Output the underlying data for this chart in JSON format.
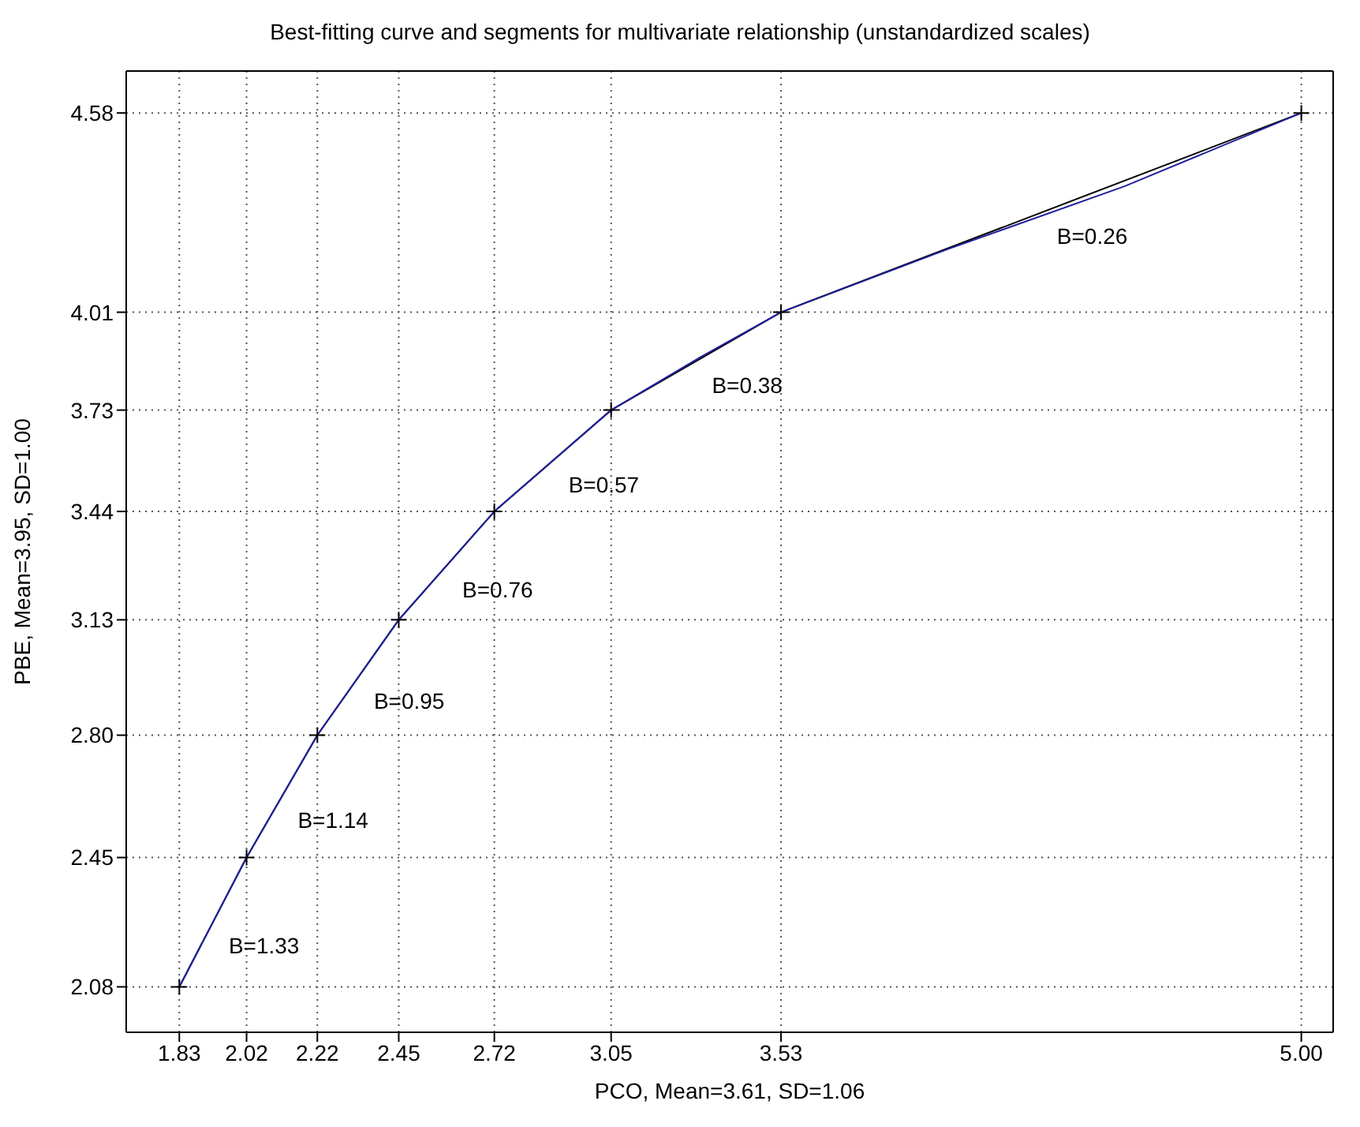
{
  "chart_data": {
    "type": "line",
    "title": "Best-fitting curve and segments for multivariate relationship (unstandardized scales)",
    "xlabel": "PCO, Mean=3.61, SD=1.06",
    "ylabel": "PBE, Mean=3.95, SD=1.00",
    "series": [
      {
        "color": "#000000",
        "marker": "cross",
        "x": [
          1.83,
          2.02,
          2.22,
          2.45,
          2.72,
          3.05,
          3.53,
          5.0
        ],
        "values": [
          2.08,
          2.45,
          2.8,
          3.13,
          3.44,
          3.73,
          4.01,
          4.58
        ]
      },
      {
        "color": "#2020a0",
        "marker": "none",
        "x": [
          1.83,
          2.02,
          2.22,
          2.45,
          2.72,
          3.05,
          3.3,
          3.53,
          4.0,
          4.5,
          5.0
        ],
        "values": [
          2.08,
          2.45,
          2.8,
          3.13,
          3.44,
          3.73,
          3.88,
          4.01,
          4.19,
          4.37,
          4.58
        ]
      }
    ],
    "xlim": [
      1.68,
      5.09
    ],
    "ylim": [
      1.95,
      4.7
    ],
    "xticks": [
      1.83,
      2.02,
      2.22,
      2.45,
      2.72,
      3.05,
      3.53,
      {
        "value": 5,
        "label": "5.00"
      }
    ],
    "yticks": [
      2.08,
      2.45,
      {
        "value": 2.8,
        "label": "2.80"
      },
      3.13,
      3.44,
      3.73,
      4.01,
      4.58
    ],
    "grid": true,
    "line_style": "solid",
    "annotations": [
      "B=1.33",
      "B=1.14",
      "B=0.95",
      "B=0.76",
      "B=0.57",
      "B=0.38",
      "B=0.26"
    ]
  }
}
